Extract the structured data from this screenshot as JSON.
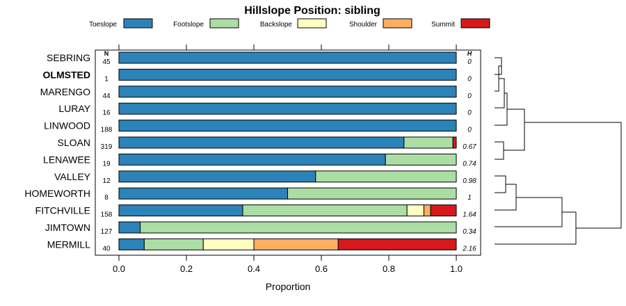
{
  "chart_data": {
    "type": "bar",
    "orientation": "horizontal-stacked",
    "title": "Hillslope Position: sibling",
    "xlabel": "Proportion",
    "ylabel": "",
    "xlim": [
      0,
      1
    ],
    "x_ticks": [
      "0.0",
      "0.2",
      "0.4",
      "0.6",
      "0.8",
      "1.0"
    ],
    "n_header": "N",
    "h_header": "H",
    "highlight": "OLMSTED",
    "series": [
      {
        "name": "Toeslope",
        "color": "#2b83ba"
      },
      {
        "name": "Footslope",
        "color": "#abdda4"
      },
      {
        "name": "Backslope",
        "color": "#ffffbf"
      },
      {
        "name": "Shoulder",
        "color": "#fdae61"
      },
      {
        "name": "Summit",
        "color": "#d7191c"
      }
    ],
    "rows": [
      {
        "name": "SEBRING",
        "n": "45",
        "h": "0",
        "values": [
          1,
          0,
          0,
          0,
          0
        ]
      },
      {
        "name": "OLMSTED",
        "n": "1",
        "h": "0",
        "values": [
          1,
          0,
          0,
          0,
          0
        ]
      },
      {
        "name": "MARENGO",
        "n": "44",
        "h": "0",
        "values": [
          1,
          0,
          0,
          0,
          0
        ]
      },
      {
        "name": "LURAY",
        "n": "16",
        "h": "0",
        "values": [
          1,
          0,
          0,
          0,
          0
        ]
      },
      {
        "name": "LINWOOD",
        "n": "188",
        "h": "0",
        "values": [
          1,
          0,
          0,
          0,
          0
        ]
      },
      {
        "name": "SLOAN",
        "n": "319",
        "h": "0.67",
        "values": [
          0.845,
          0.145,
          0,
          0,
          0.01
        ]
      },
      {
        "name": "LENAWEE",
        "n": "19",
        "h": "0.74",
        "values": [
          0.79,
          0.21,
          0,
          0,
          0
        ]
      },
      {
        "name": "VALLEY",
        "n": "12",
        "h": "0.98",
        "values": [
          0.583,
          0.417,
          0,
          0,
          0
        ]
      },
      {
        "name": "HOMEWORTH",
        "n": "8",
        "h": "1",
        "values": [
          0.5,
          0.5,
          0,
          0,
          0
        ]
      },
      {
        "name": "FITCHVILLE",
        "n": "158",
        "h": "1.64",
        "values": [
          0.367,
          0.487,
          0.05,
          0.02,
          0.076
        ]
      },
      {
        "name": "JIMTOWN",
        "n": "127",
        "h": "0.34",
        "values": [
          0.063,
          0.937,
          0,
          0,
          0
        ]
      },
      {
        "name": "MERMILL",
        "n": "40",
        "h": "2.16",
        "values": [
          0.075,
          0.175,
          0.15,
          0.25,
          0.35
        ]
      }
    ]
  }
}
